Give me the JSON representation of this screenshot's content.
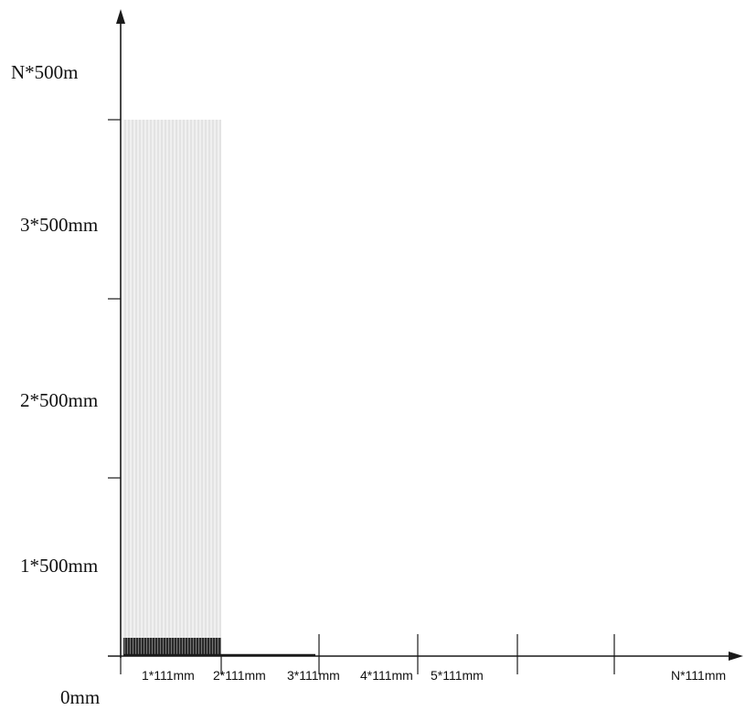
{
  "y_axis": {
    "labels": [
      "N*500m",
      "3*500mm",
      "2*500mm",
      "1*500mm",
      "0mm"
    ]
  },
  "x_axis": {
    "labels": [
      "1*111mm",
      "2*111mm",
      "3*111mm",
      "4*111mm",
      "5*111mm",
      "N*111mm"
    ]
  },
  "colors": {
    "axis": "#1a1a1a",
    "tall_hatch_bg": "#f0f0f0",
    "tall_hatch_line": "#d6d6d6",
    "base_bar": "#2a2a2a",
    "base_bar_line": "#8a8a8a"
  }
}
